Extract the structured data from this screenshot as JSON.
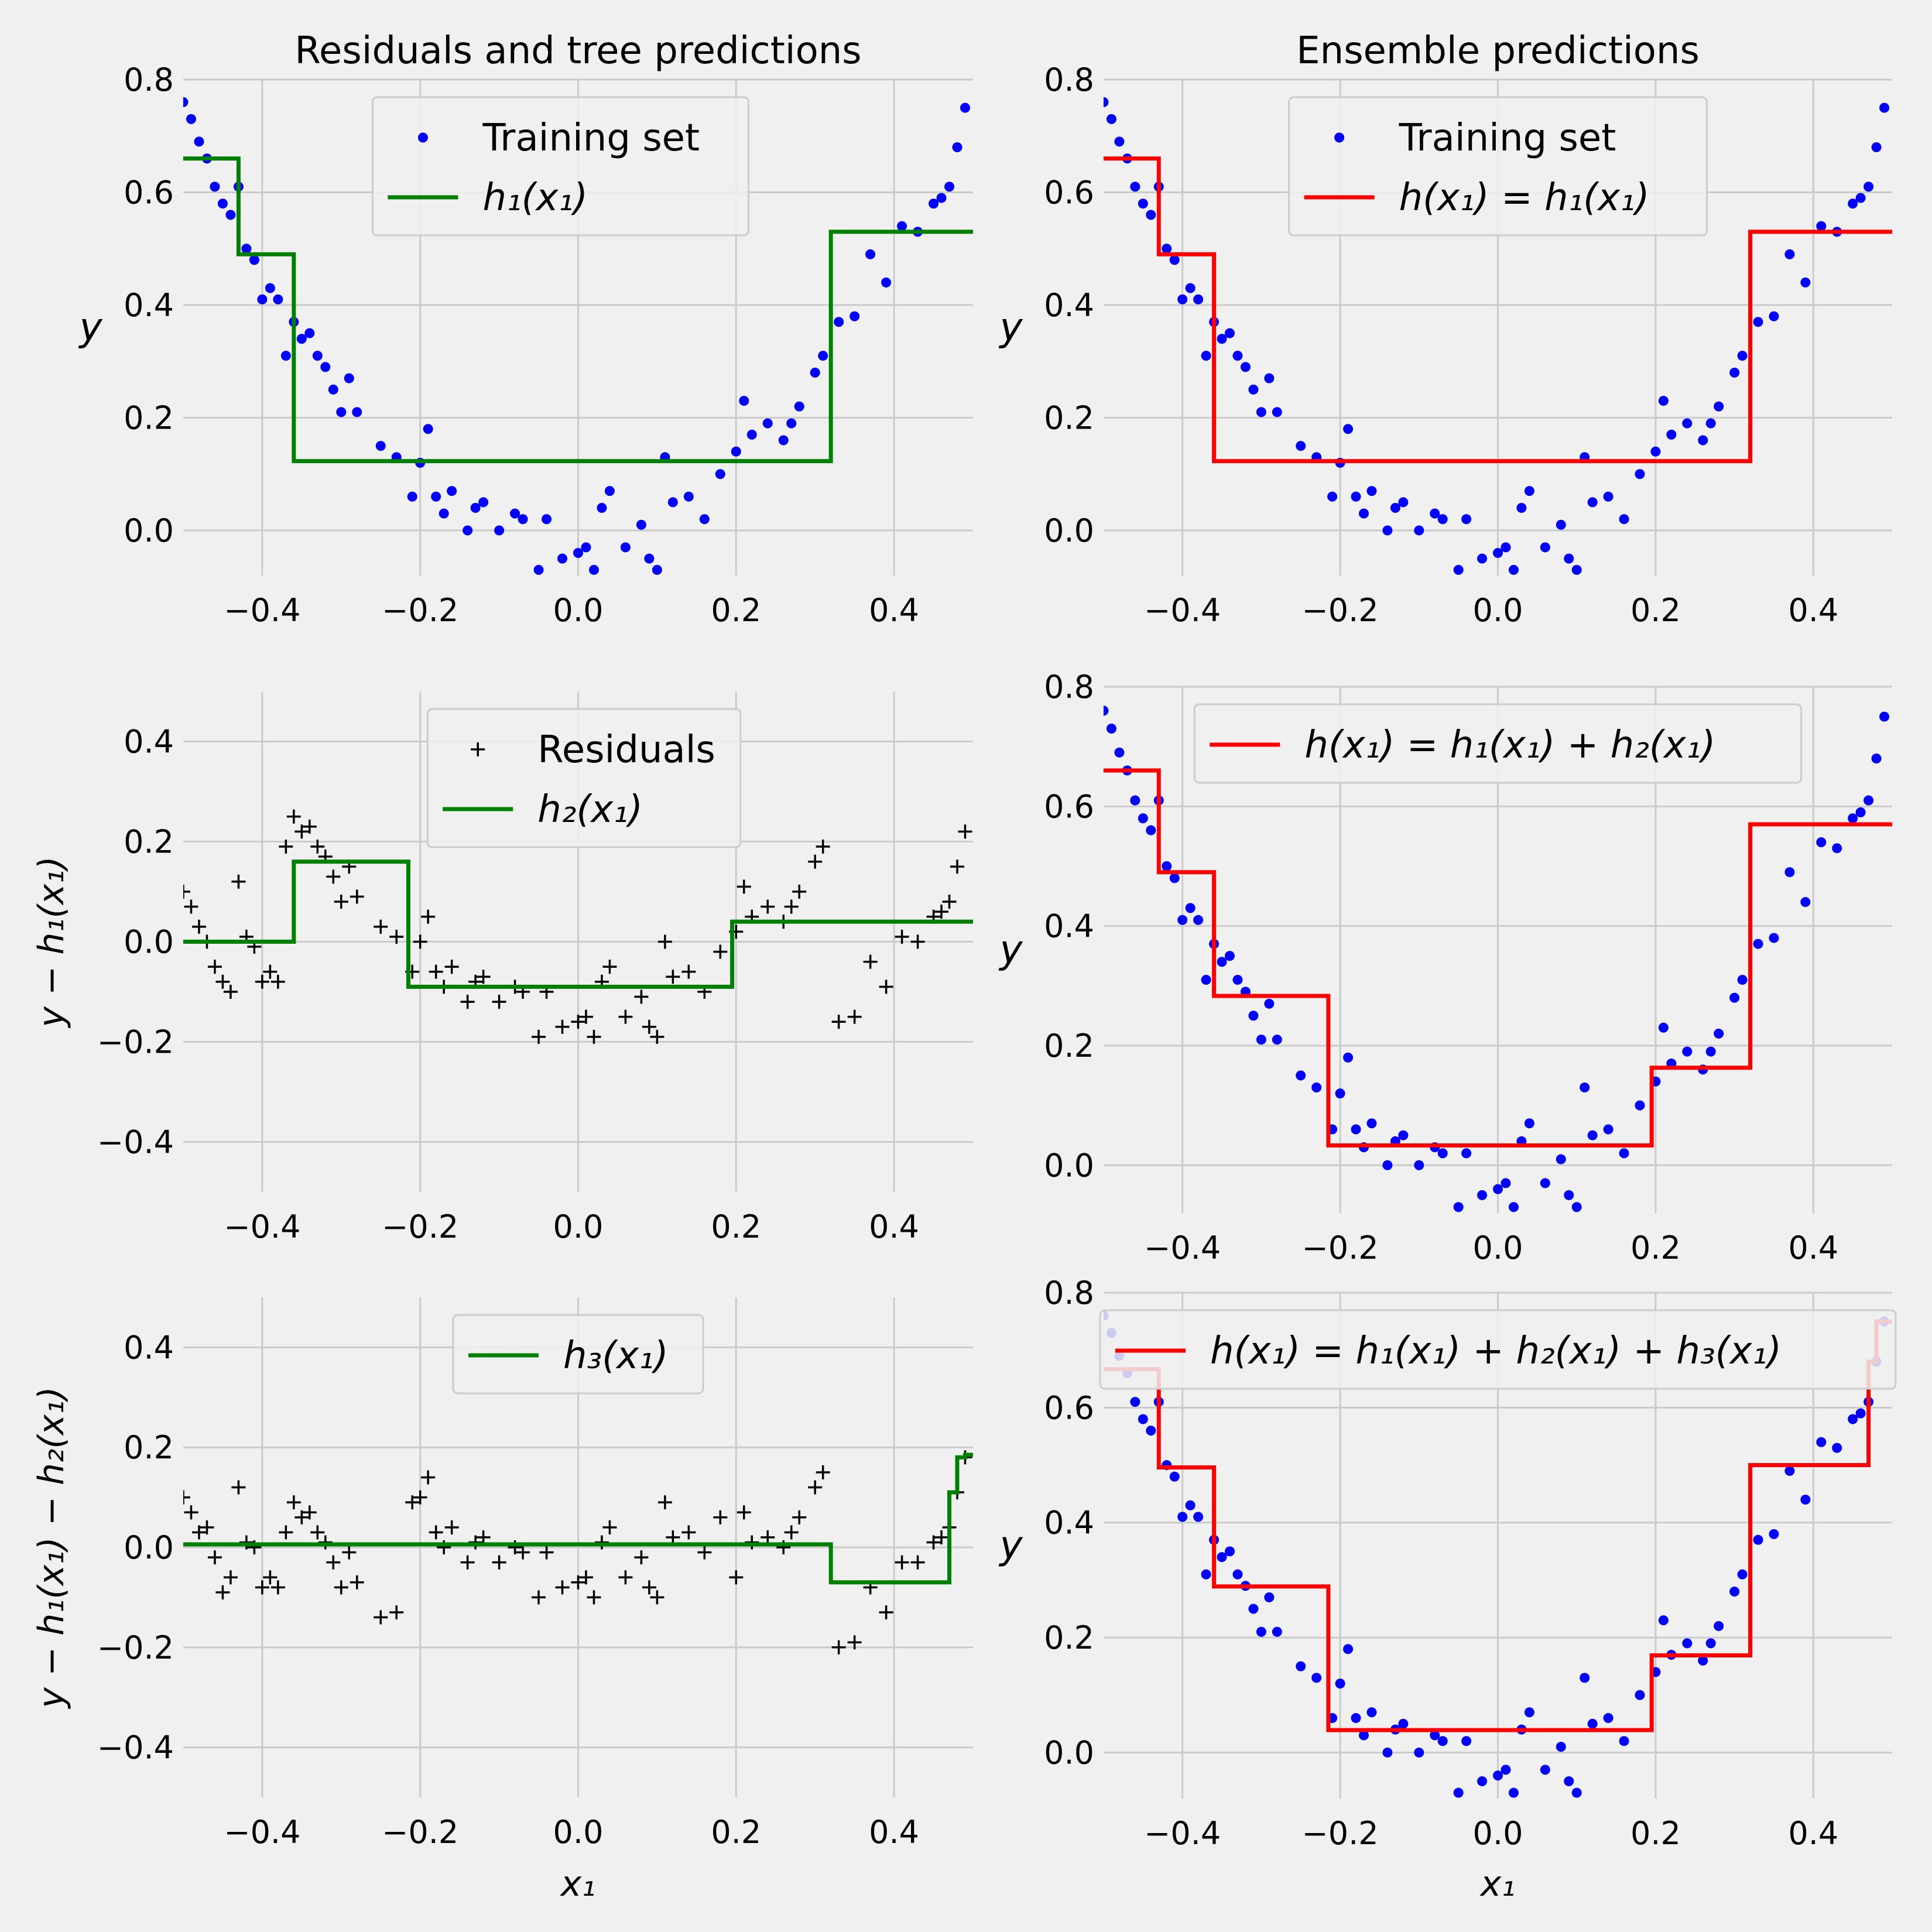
{
  "colors": {
    "background": "#f0f0f0",
    "grid": "#cbcbcb",
    "training_points": "#0000ff",
    "tree_prediction": "#008000",
    "ensemble_prediction": "#ff0000",
    "residual_markers": "#000000",
    "legend_background": "#f0f0f0",
    "legend_border": "#cccccc"
  },
  "chart_data": [
    {
      "type": "scatter",
      "panel": "top-left",
      "title": "Residuals and tree predictions",
      "xlabel": "",
      "ylabel": "y",
      "xlim": [
        -0.5,
        0.5
      ],
      "ylim": [
        -0.08,
        0.8
      ],
      "xticks": [
        "−0.4",
        "−0.2",
        "0.0",
        "0.2",
        "0.4"
      ],
      "yticks": [
        "0.0",
        "0.2",
        "0.4",
        "0.6",
        "0.8"
      ],
      "grid": true,
      "legend_position": "top-center",
      "series": [
        {
          "name": "Training set",
          "kind": "points",
          "color": "blue",
          "x": [
            -0.5,
            -0.49,
            -0.48,
            -0.47,
            -0.46,
            -0.45,
            -0.44,
            -0.43,
            -0.42,
            -0.41,
            -0.4,
            -0.39,
            -0.38,
            -0.37,
            -0.36,
            -0.35,
            -0.34,
            -0.33,
            -0.32,
            -0.31,
            -0.3,
            -0.29,
            -0.28,
            -0.25,
            -0.23,
            -0.21,
            -0.2,
            -0.19,
            -0.18,
            -0.17,
            -0.16,
            -0.14,
            -0.13,
            -0.12,
            -0.1,
            -0.08,
            -0.07,
            -0.05,
            -0.04,
            -0.02,
            0.0,
            0.01,
            0.02,
            0.03,
            0.04,
            0.06,
            0.08,
            0.09,
            0.1,
            0.11,
            0.12,
            0.14,
            0.16,
            0.18,
            0.2,
            0.21,
            0.22,
            0.24,
            0.26,
            0.27,
            0.28,
            0.3,
            0.31,
            0.33,
            0.35,
            0.37,
            0.39,
            0.41,
            0.43,
            0.45,
            0.46,
            0.47,
            0.48,
            0.49
          ],
          "y": [
            0.76,
            0.73,
            0.69,
            0.66,
            0.61,
            0.58,
            0.56,
            0.61,
            0.5,
            0.48,
            0.41,
            0.43,
            0.41,
            0.31,
            0.37,
            0.34,
            0.35,
            0.31,
            0.29,
            0.25,
            0.21,
            0.27,
            0.21,
            0.15,
            0.13,
            0.06,
            0.12,
            0.18,
            0.06,
            0.03,
            0.07,
            0.0,
            0.04,
            0.05,
            0.0,
            0.03,
            0.02,
            -0.07,
            0.02,
            -0.05,
            -0.04,
            -0.03,
            -0.07,
            0.04,
            0.07,
            -0.03,
            0.01,
            -0.05,
            -0.07,
            0.13,
            0.05,
            0.06,
            0.02,
            0.1,
            0.14,
            0.23,
            0.17,
            0.19,
            0.16,
            0.19,
            0.22,
            0.28,
            0.31,
            0.37,
            0.38,
            0.49,
            0.44,
            0.54,
            0.53,
            0.58,
            0.59,
            0.61,
            0.68,
            0.75
          ]
        },
        {
          "name": "h₁(x₁)",
          "kind": "step",
          "color": "green",
          "x": [
            -0.5,
            -0.43,
            -0.43,
            -0.36,
            -0.36,
            0.32,
            0.32,
            0.5
          ],
          "y": [
            0.66,
            0.66,
            0.49,
            0.49,
            0.123,
            0.123,
            0.53,
            0.53
          ]
        }
      ]
    },
    {
      "type": "scatter",
      "panel": "top-right",
      "title": "Ensemble predictions",
      "xlabel": "",
      "ylabel": "y",
      "xlim": [
        -0.5,
        0.5
      ],
      "ylim": [
        -0.08,
        0.8
      ],
      "xticks": [
        "−0.4",
        "−0.2",
        "0.0",
        "0.2",
        "0.4"
      ],
      "yticks": [
        "0.0",
        "0.2",
        "0.4",
        "0.6",
        "0.8"
      ],
      "grid": true,
      "legend_position": "top-center",
      "series": [
        {
          "name": "Training set",
          "kind": "points",
          "color": "blue",
          "ref": "training"
        },
        {
          "name": "h(x₁) = h₁(x₁)",
          "kind": "step",
          "color": "red",
          "x": [
            -0.5,
            -0.43,
            -0.43,
            -0.36,
            -0.36,
            0.32,
            0.32,
            0.5
          ],
          "y": [
            0.66,
            0.66,
            0.49,
            0.49,
            0.123,
            0.123,
            0.53,
            0.53
          ]
        }
      ]
    },
    {
      "type": "scatter",
      "panel": "middle-left",
      "title": "",
      "xlabel": "",
      "ylabel": "y − h₁(x₁)",
      "xlim": [
        -0.5,
        0.5
      ],
      "ylim": [
        -0.5,
        0.5
      ],
      "xticks": [
        "−0.4",
        "−0.2",
        "0.0",
        "0.2",
        "0.4"
      ],
      "yticks": [
        "−0.4",
        "−0.2",
        "0.0",
        "0.2",
        "0.4"
      ],
      "grid": true,
      "legend_position": "top-center",
      "series": [
        {
          "name": "Residuals",
          "kind": "plus",
          "color": "black",
          "x": [
            -0.5,
            -0.49,
            -0.48,
            -0.47,
            -0.46,
            -0.45,
            -0.44,
            -0.43,
            -0.42,
            -0.41,
            -0.4,
            -0.39,
            -0.38,
            -0.37,
            -0.36,
            -0.35,
            -0.34,
            -0.33,
            -0.32,
            -0.31,
            -0.3,
            -0.29,
            -0.28,
            -0.25,
            -0.23,
            -0.21,
            -0.2,
            -0.19,
            -0.18,
            -0.17,
            -0.16,
            -0.14,
            -0.13,
            -0.12,
            -0.1,
            -0.08,
            -0.07,
            -0.05,
            -0.04,
            -0.02,
            0.0,
            0.01,
            0.02,
            0.03,
            0.04,
            0.06,
            0.08,
            0.09,
            0.1,
            0.11,
            0.12,
            0.14,
            0.16,
            0.18,
            0.2,
            0.21,
            0.22,
            0.24,
            0.26,
            0.27,
            0.28,
            0.3,
            0.31,
            0.33,
            0.35,
            0.37,
            0.39,
            0.41,
            0.43,
            0.45,
            0.46,
            0.47,
            0.48,
            0.49
          ],
          "y": [
            0.1,
            0.07,
            0.03,
            0.0,
            -0.05,
            -0.08,
            -0.1,
            0.12,
            0.01,
            -0.01,
            -0.08,
            -0.06,
            -0.08,
            0.19,
            0.25,
            0.22,
            0.23,
            0.19,
            0.17,
            0.13,
            0.08,
            0.15,
            0.09,
            0.03,
            0.01,
            -0.06,
            0.0,
            0.05,
            -0.06,
            -0.09,
            -0.05,
            -0.12,
            -0.08,
            -0.07,
            -0.12,
            -0.09,
            -0.1,
            -0.19,
            -0.1,
            -0.17,
            -0.16,
            -0.15,
            -0.19,
            -0.08,
            -0.05,
            -0.15,
            -0.11,
            -0.17,
            -0.19,
            0.0,
            -0.07,
            -0.06,
            -0.1,
            -0.02,
            0.02,
            0.11,
            0.05,
            0.07,
            0.04,
            0.07,
            0.1,
            0.16,
            0.19,
            -0.16,
            -0.15,
            -0.04,
            -0.09,
            0.01,
            0.0,
            0.05,
            0.06,
            0.08,
            0.15,
            0.22
          ]
        },
        {
          "name": "h₂(x₁)",
          "kind": "step",
          "color": "green",
          "x": [
            -0.5,
            -0.36,
            -0.36,
            -0.215,
            -0.215,
            0.195,
            0.195,
            0.5
          ],
          "y": [
            0.0,
            0.0,
            0.16,
            0.16,
            -0.09,
            -0.09,
            0.04,
            0.04
          ]
        }
      ]
    },
    {
      "type": "scatter",
      "panel": "middle-right",
      "title": "",
      "xlabel": "",
      "ylabel": "y",
      "xlim": [
        -0.5,
        0.5
      ],
      "ylim": [
        -0.08,
        0.8
      ],
      "xticks": [
        "−0.4",
        "−0.2",
        "0.0",
        "0.2",
        "0.4"
      ],
      "yticks": [
        "0.0",
        "0.2",
        "0.4",
        "0.6",
        "0.8"
      ],
      "grid": true,
      "legend_position": "top-center",
      "series": [
        {
          "name": "",
          "kind": "points",
          "color": "blue",
          "ref": "training"
        },
        {
          "name": "h(x₁) = h₁(x₁) + h₂(x₁)",
          "kind": "step",
          "color": "red",
          "x": [
            -0.5,
            -0.43,
            -0.43,
            -0.36,
            -0.36,
            -0.215,
            -0.215,
            0.195,
            0.195,
            0.32,
            0.32,
            0.5
          ],
          "y": [
            0.66,
            0.66,
            0.49,
            0.49,
            0.283,
            0.283,
            0.033,
            0.033,
            0.163,
            0.163,
            0.57,
            0.57
          ]
        }
      ]
    },
    {
      "type": "scatter",
      "panel": "bottom-left",
      "title": "",
      "xlabel": "x₁",
      "ylabel": "y − h₁(x₁) − h₂(x₁)",
      "xlim": [
        -0.5,
        0.5
      ],
      "ylim": [
        -0.5,
        0.5
      ],
      "xticks": [
        "−0.4",
        "−0.2",
        "0.0",
        "0.2",
        "0.4"
      ],
      "yticks": [
        "−0.4",
        "−0.2",
        "0.0",
        "0.2",
        "0.4"
      ],
      "grid": true,
      "legend_position": "top-center",
      "series": [
        {
          "name": "",
          "kind": "plus",
          "color": "black",
          "x": [
            -0.5,
            -0.49,
            -0.48,
            -0.47,
            -0.46,
            -0.45,
            -0.44,
            -0.43,
            -0.42,
            -0.41,
            -0.4,
            -0.39,
            -0.38,
            -0.37,
            -0.36,
            -0.35,
            -0.34,
            -0.33,
            -0.32,
            -0.31,
            -0.3,
            -0.29,
            -0.28,
            -0.25,
            -0.23,
            -0.21,
            -0.2,
            -0.19,
            -0.18,
            -0.17,
            -0.16,
            -0.14,
            -0.13,
            -0.12,
            -0.1,
            -0.08,
            -0.07,
            -0.05,
            -0.04,
            -0.02,
            0.0,
            0.01,
            0.02,
            0.03,
            0.04,
            0.06,
            0.08,
            0.09,
            0.1,
            0.11,
            0.12,
            0.14,
            0.16,
            0.18,
            0.2,
            0.21,
            0.22,
            0.24,
            0.26,
            0.27,
            0.28,
            0.3,
            0.31,
            0.33,
            0.35,
            0.37,
            0.39,
            0.41,
            0.43,
            0.45,
            0.46,
            0.47,
            0.48,
            0.49
          ],
          "y": [
            0.1,
            0.07,
            0.03,
            0.04,
            -0.02,
            -0.09,
            -0.06,
            0.12,
            0.01,
            0.0,
            -0.08,
            -0.06,
            -0.08,
            0.03,
            0.09,
            0.06,
            0.07,
            0.03,
            0.01,
            -0.03,
            -0.08,
            -0.01,
            -0.07,
            -0.14,
            -0.13,
            0.09,
            0.1,
            0.14,
            0.03,
            0.0,
            0.04,
            -0.03,
            0.01,
            0.02,
            -0.03,
            0.0,
            -0.01,
            -0.1,
            -0.01,
            -0.08,
            -0.07,
            -0.06,
            -0.1,
            0.01,
            0.04,
            -0.06,
            -0.02,
            -0.08,
            -0.1,
            0.09,
            0.02,
            0.03,
            -0.01,
            0.06,
            -0.06,
            0.07,
            0.01,
            0.02,
            0.0,
            0.03,
            0.06,
            0.12,
            0.15,
            -0.2,
            -0.19,
            -0.08,
            -0.13,
            -0.03,
            -0.03,
            0.01,
            0.02,
            0.04,
            0.11,
            0.18
          ]
        },
        {
          "name": "h₃(x₁)",
          "kind": "step",
          "color": "green",
          "x": [
            -0.5,
            0.32,
            0.32,
            0.47,
            0.47,
            0.48,
            0.48,
            0.49,
            0.49,
            0.5
          ],
          "y": [
            0.006,
            0.006,
            -0.07,
            -0.07,
            0.11,
            0.11,
            0.18,
            0.18,
            0.185,
            0.185
          ]
        }
      ]
    },
    {
      "type": "scatter",
      "panel": "bottom-right",
      "title": "",
      "xlabel": "x₁",
      "ylabel": "y",
      "xlim": [
        -0.5,
        0.5
      ],
      "ylim": [
        -0.08,
        0.8
      ],
      "xticks": [
        "−0.4",
        "−0.2",
        "0.0",
        "0.2",
        "0.4"
      ],
      "yticks": [
        "0.0",
        "0.2",
        "0.4",
        "0.6",
        "0.8"
      ],
      "grid": true,
      "legend_position": "top-center",
      "series": [
        {
          "name": "",
          "kind": "points",
          "color": "blue",
          "ref": "training"
        },
        {
          "name": "h(x₁) = h₁(x₁) + h₂(x₁) + h₃(x₁)",
          "kind": "step",
          "color": "red",
          "x": [
            -0.5,
            -0.43,
            -0.43,
            -0.36,
            -0.36,
            -0.215,
            -0.215,
            0.195,
            0.195,
            0.32,
            0.32,
            0.47,
            0.47,
            0.48,
            0.48,
            0.5
          ],
          "y": [
            0.667,
            0.667,
            0.496,
            0.496,
            0.289,
            0.289,
            0.039,
            0.039,
            0.169,
            0.169,
            0.5,
            0.5,
            0.68,
            0.68,
            0.75,
            0.75
          ]
        }
      ]
    }
  ]
}
